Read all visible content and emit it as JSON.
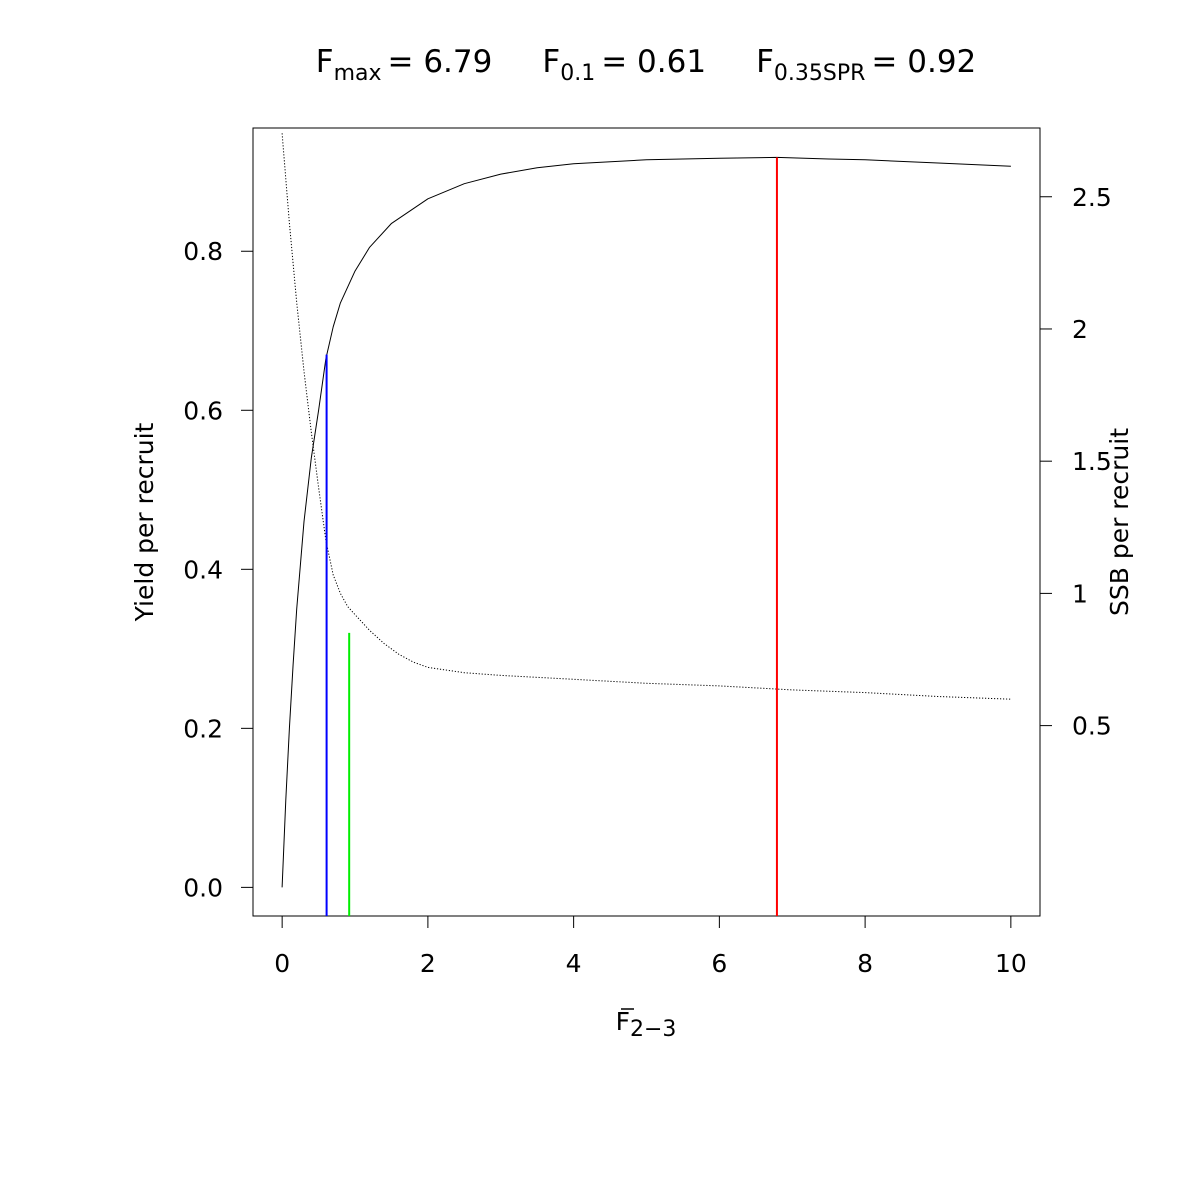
{
  "chart_data": {
    "type": "line",
    "title": {
      "fmax_base": "F",
      "fmax_sub": "max",
      "fmax_value": "= 6.79",
      "f01_base": "F",
      "f01_sub": "0.1",
      "f01_value": "= 0.61",
      "fspr_base": "F",
      "fspr_sub": "0.35SPR",
      "fspr_value": "= 0.92"
    },
    "xlabel": {
      "base": "F",
      "sub": "2−3"
    },
    "ylabel": "Yield per recruit",
    "y2label": "SSB per recruit",
    "xlim": [
      -0.4,
      10.4
    ],
    "ylim": [
      -0.036,
      0.955
    ],
    "y2lim": [
      -0.22,
      2.76
    ],
    "xticks": [
      0,
      2,
      4,
      6,
      8,
      10
    ],
    "yticks": [
      0.0,
      0.2,
      0.4,
      0.6,
      0.8
    ],
    "ytick_labels": [
      "0.0",
      "0.2",
      "0.4",
      "0.6",
      "0.8"
    ],
    "y2ticks": [
      0.5,
      1,
      1.5,
      2,
      2.5
    ],
    "y2tick_labels": [
      "0.5",
      "1",
      "1.5",
      "2",
      "2.5"
    ],
    "grid": false,
    "series": [
      {
        "role": "yield_per_recruit",
        "axis": "left",
        "style": "solid",
        "color": "#000000",
        "x": [
          0,
          0.05,
          0.1,
          0.15,
          0.2,
          0.3,
          0.4,
          0.5,
          0.6,
          0.7,
          0.8,
          1.0,
          1.2,
          1.5,
          2.0,
          2.5,
          3.0,
          3.5,
          4.0,
          5.0,
          6.0,
          6.79,
          7.5,
          8.0,
          9.0,
          10.0
        ],
        "y": [
          0.0,
          0.11,
          0.2,
          0.28,
          0.35,
          0.46,
          0.54,
          0.6,
          0.665,
          0.705,
          0.735,
          0.775,
          0.805,
          0.835,
          0.866,
          0.885,
          0.897,
          0.905,
          0.91,
          0.915,
          0.917,
          0.918,
          0.916,
          0.915,
          0.911,
          0.907
        ]
      },
      {
        "role": "ssb_per_recruit",
        "axis": "right",
        "style": "dotted",
        "color": "#000000",
        "x": [
          0,
          0.1,
          0.2,
          0.3,
          0.4,
          0.5,
          0.6,
          0.7,
          0.8,
          0.9,
          1.0,
          1.2,
          1.4,
          1.6,
          1.8,
          2.0,
          2.5,
          3.0,
          4.0,
          5.0,
          6.0,
          7.0,
          8.0,
          9.0,
          10.0
        ],
        "y": [
          2.74,
          2.4,
          2.1,
          1.84,
          1.61,
          1.4,
          1.2,
          1.07,
          1.0,
          0.95,
          0.92,
          0.86,
          0.81,
          0.77,
          0.74,
          0.72,
          0.7,
          0.69,
          0.675,
          0.66,
          0.65,
          0.635,
          0.625,
          0.61,
          0.6
        ]
      }
    ],
    "reference_lines": [
      {
        "role": "F0.1",
        "x": 0.61,
        "y_top": 0.67,
        "color": "#0000ff"
      },
      {
        "role": "F0.35SPR",
        "x": 0.92,
        "y_top": 0.32,
        "color": "#00ee00"
      },
      {
        "role": "Fmax",
        "x": 6.79,
        "y_top": 0.918,
        "color": "#ff0000"
      }
    ]
  }
}
